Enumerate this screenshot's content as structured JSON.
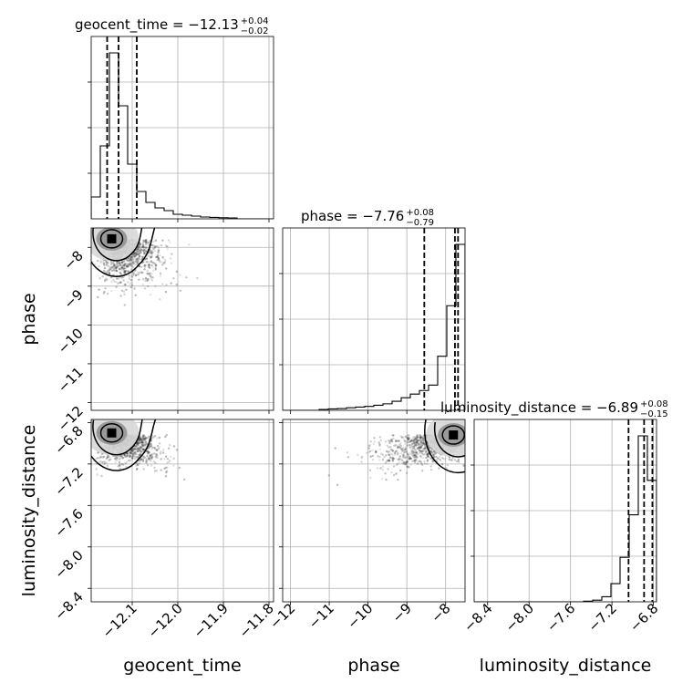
{
  "chart_data": {
    "type": "corner",
    "parameters": [
      "geocent_time",
      "phase",
      "luminosity_distance"
    ],
    "axis_labels": [
      "geocent_time",
      "phase",
      "luminosity_distance"
    ],
    "ranges": {
      "geocent_time": [
        -12.19,
        -11.79
      ],
      "phase": [
        -12.2,
        -7.5
      ],
      "luminosity_distance": [
        -8.53,
        -6.77
      ]
    },
    "ticks": {
      "geocent_time": [
        -12.1,
        -12.0,
        -11.9,
        -11.8
      ],
      "phase": [
        -12,
        -11,
        -10,
        -9,
        -8
      ],
      "luminosity_distance": [
        -8.4,
        -8.0,
        -7.6,
        -7.2,
        -6.8
      ]
    },
    "tick_labels": {
      "geocent_time": [
        "−12.1",
        "−12.0",
        "−11.9",
        "−11.8"
      ],
      "phase": [
        "−12",
        "−11",
        "−10",
        "−9",
        "−8"
      ],
      "luminosity_distance": [
        "−8.4",
        "−8.0",
        "−7.6",
        "−7.2",
        "−6.8"
      ]
    },
    "titles": [
      {
        "name": "geocent_time",
        "text": "geocent_time = −12.13",
        "plus": "+0.04",
        "minus": "−0.02"
      },
      {
        "name": "phase",
        "text": "phase = −7.76",
        "plus": "+0.08",
        "minus": "−0.79"
      },
      {
        "name": "luminosity_distance",
        "text": "luminosity_distance = −6.89",
        "plus": "+0.08",
        "minus": "−0.15"
      }
    ],
    "quantiles": {
      "geocent_time": [
        -12.155,
        -12.13,
        -12.09
      ],
      "phase": [
        -8.55,
        -7.76,
        -7.68
      ],
      "luminosity_distance": [
        -7.04,
        -6.89,
        -6.81
      ]
    },
    "histograms": {
      "geocent_time": {
        "edges": [
          -12.19,
          -12.17,
          -12.15,
          -12.13,
          -12.11,
          -12.09,
          -12.07,
          -12.05,
          -12.03,
          -12.01,
          -11.99,
          -11.97,
          -11.95,
          -11.93,
          -11.91,
          -11.89,
          -11.87,
          -11.85,
          -11.83,
          -11.81,
          -11.79
        ],
        "counts": [
          0.12,
          0.4,
          0.91,
          0.62,
          0.3,
          0.15,
          0.09,
          0.06,
          0.045,
          0.025,
          0.02,
          0.015,
          0.01,
          0.008,
          0.006,
          0.005,
          0.0,
          0.0,
          0.0,
          0.0
        ]
      },
      "phase": {
        "edges": [
          -12.2,
          -11.965,
          -11.73,
          -11.495,
          -11.26,
          -11.025,
          -10.79,
          -10.555,
          -10.32,
          -10.085,
          -9.85,
          -9.615,
          -9.38,
          -9.145,
          -8.91,
          -8.675,
          -8.44,
          -8.205,
          -7.97,
          -7.735,
          -7.5
        ],
        "counts": [
          0.0,
          0.0,
          0.0,
          0.0,
          0.005,
          0.008,
          0.01,
          0.014,
          0.018,
          0.022,
          0.028,
          0.036,
          0.05,
          0.07,
          0.09,
          0.11,
          0.14,
          0.3,
          0.58,
          0.92
        ]
      },
      "luminosity_distance": {
        "edges": [
          -8.53,
          -8.442,
          -8.354,
          -8.266,
          -8.178,
          -8.09,
          -8.002,
          -7.914,
          -7.826,
          -7.738,
          -7.65,
          -7.562,
          -7.474,
          -7.386,
          -7.298,
          -7.21,
          -7.122,
          -7.034,
          -6.946,
          -6.858,
          -6.77
        ],
        "counts": [
          0.0,
          0.0,
          0.0,
          0.0,
          0.0,
          0.0,
          0.0,
          0.0,
          0.0,
          0.0,
          0.0,
          0.0,
          0.003,
          0.008,
          0.025,
          0.09,
          0.22,
          0.43,
          0.82,
          0.6
        ]
      }
    },
    "peaks_2d": {
      "phase_vs_geocent_time": {
        "x": -12.145,
        "y": -7.78
      },
      "luminosity_distance_vs_geocent_time": {
        "x": -12.145,
        "y": -6.9
      },
      "luminosity_distance_vs_phase": {
        "x": -7.8,
        "y": -6.92
      }
    }
  }
}
